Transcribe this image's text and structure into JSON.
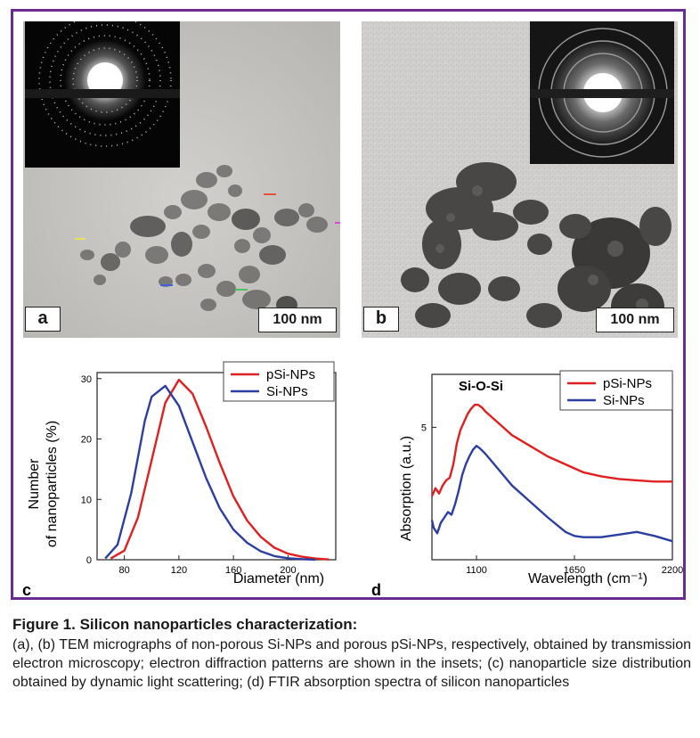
{
  "panels": {
    "a": {
      "letter": "a",
      "scale": "100 nm"
    },
    "b": {
      "letter": "b",
      "scale": "100 nm"
    },
    "c": {
      "letter": "c"
    },
    "d": {
      "letter": "d"
    }
  },
  "chart_data": [
    {
      "type": "line",
      "panel": "c",
      "xlabel": "Diameter (nm)",
      "ylabel": "Number of nanoparticles (%)",
      "ylabel_lines": [
        "Number",
        "of nanoparticles (%)"
      ],
      "xlim": [
        60,
        235
      ],
      "ylim": [
        0,
        31
      ],
      "xticks": [
        80,
        120,
        160,
        200
      ],
      "yticks": [
        0,
        10,
        20,
        30
      ],
      "legend_position": "top-right",
      "series": [
        {
          "name": "pSi-NPs",
          "color": "#e02020",
          "x": [
            70,
            80,
            90,
            100,
            110,
            120,
            130,
            140,
            150,
            160,
            170,
            180,
            190,
            200,
            210,
            220,
            230
          ],
          "y": [
            0.2,
            1.5,
            7,
            16.5,
            26,
            29.8,
            27.5,
            22,
            16,
            10.5,
            6.5,
            3.8,
            2,
            1,
            0.5,
            0.2,
            0.05
          ]
        },
        {
          "name": "Si-NPs",
          "color": "#2c3fa0",
          "x": [
            66,
            75,
            85,
            95,
            100,
            110,
            120,
            130,
            140,
            150,
            160,
            170,
            180,
            190,
            200,
            210,
            220
          ],
          "y": [
            0.2,
            2.5,
            11,
            23,
            27,
            28.8,
            25.5,
            19.5,
            13.5,
            8.5,
            5,
            2.8,
            1.4,
            0.6,
            0.25,
            0.1,
            0.02
          ]
        }
      ]
    },
    {
      "type": "line",
      "panel": "d",
      "xlabel": "Wavelength (cm⁻¹)",
      "ylabel": "Absorption (a.u.)",
      "xlim": [
        850,
        2200
      ],
      "ylim": [
        0,
        7
      ],
      "xticks": [
        1100,
        1650,
        2200
      ],
      "yticks": [
        5
      ],
      "annotation": "Si-O-Si",
      "legend_position": "top-right",
      "series": [
        {
          "name": "pSi-NPs",
          "color": "#e02020",
          "x": [
            850,
            870,
            890,
            910,
            930,
            950,
            970,
            990,
            1010,
            1030,
            1050,
            1070,
            1090,
            1110,
            1130,
            1150,
            1200,
            1250,
            1300,
            1400,
            1500,
            1600,
            1650,
            1700,
            1800,
            1900,
            2000,
            2100,
            2200
          ],
          "y": [
            2.4,
            2.7,
            2.5,
            2.8,
            3.0,
            3.1,
            3.6,
            4.4,
            4.9,
            5.2,
            5.5,
            5.7,
            5.85,
            5.85,
            5.75,
            5.6,
            5.3,
            5.0,
            4.7,
            4.3,
            3.9,
            3.6,
            3.45,
            3.3,
            3.15,
            3.05,
            3.0,
            2.95,
            2.95
          ]
        },
        {
          "name": "Si-NPs",
          "color": "#2c3fa0",
          "x": [
            850,
            860,
            880,
            900,
            920,
            940,
            960,
            980,
            1000,
            1020,
            1040,
            1060,
            1080,
            1100,
            1120,
            1150,
            1200,
            1250,
            1300,
            1400,
            1500,
            1600,
            1650,
            1700,
            1800,
            1900,
            2000,
            2100,
            2200
          ],
          "y": [
            1.5,
            1.2,
            1.0,
            1.4,
            1.6,
            1.8,
            1.7,
            2.1,
            2.6,
            3.2,
            3.6,
            3.9,
            4.15,
            4.3,
            4.2,
            4.0,
            3.6,
            3.2,
            2.8,
            2.2,
            1.6,
            1.05,
            0.9,
            0.85,
            0.85,
            0.95,
            1.05,
            0.9,
            0.7
          ]
        }
      ]
    }
  ],
  "caption": {
    "title": "Figure 1. Silicon nanoparticles characterization:",
    "body": "(a), (b) TEM micrographs of non-porous Si-NPs and porous pSi-NPs, respectively, obtained by transmission electron microscopy; electron diffraction patterns are shown in the insets; (c) nanoparticle size distribution obtained by dynamic light scattering; (d) FTIR absorption spectra of silicon nanoparticles"
  }
}
